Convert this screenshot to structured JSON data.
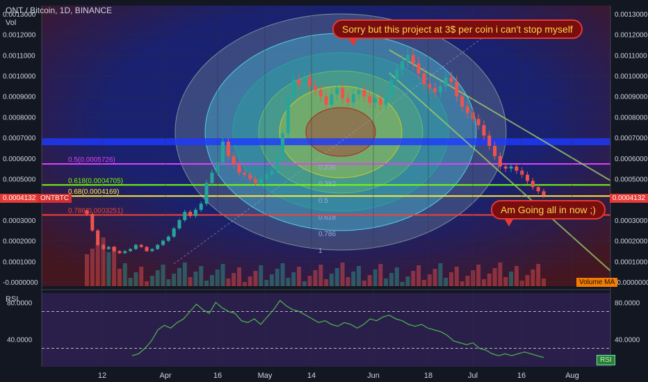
{
  "header": {
    "title": "ONT / Bitcoin, 1D, BINANCE",
    "volume_label": "Vol"
  },
  "price_tags": {
    "last_price": "0.0004132",
    "symbol": "ONTBTC"
  },
  "bubbles": {
    "top": "Sorry but this project at 3$ per coin i can't stop myself",
    "bottom": "Am Going all in now ;)"
  },
  "volume_ma_label": "Volume MA",
  "rsi_panel": {
    "title": "RSI",
    "tag": "RSI",
    "y_ticks": [
      "80.0000",
      "40.0000"
    ],
    "overbought": 70,
    "oversold": 30,
    "range": [
      10,
      90
    ]
  },
  "fib_labels": [
    {
      "text": "0.5(0.0005726)",
      "level": 0.0005726,
      "color": "#e040fb"
    },
    {
      "text": "0.618(0.0004705)",
      "level": 0.0004705,
      "color": "#76ff03"
    },
    {
      "text": "0.68(0.0004169)",
      "level": 0.0004169,
      "color": "#ffeb3b"
    },
    {
      "text": "0.786(0.0003251)",
      "level": 0.0003251,
      "color": "#f44336"
    }
  ],
  "horizontal_lines": [
    {
      "level": 0.00068,
      "color": "#1e3aff"
    }
  ],
  "fib_circle_labels": [
    "0.236",
    "0.382",
    "0.5",
    "0.618",
    "0.786",
    "1"
  ],
  "chart_data": {
    "type": "candlestick",
    "title": "ONT / Bitcoin, 1D, BINANCE",
    "y_ticks": [
      "0.0013000",
      "0.0012000",
      "0.0011000",
      "0.0010000",
      "0.0009000",
      "0.0008000",
      "0.0007000",
      "0.0006000",
      "0.0005000",
      "0.0004000",
      "0.0003000",
      "0.0002000",
      "0.0001000",
      "-0.0000000"
    ],
    "ylim": [
      -2e-05,
      0.00134
    ],
    "x_ticks": [
      "12",
      "Apr",
      "16",
      "May",
      "14",
      "Jun",
      "18",
      "Jul",
      "16",
      "Aug"
    ],
    "close": [
      0.00033,
      0.00025,
      0.00018,
      0.00016,
      0.00017,
      0.00015,
      0.00014,
      0.00015,
      0.00016,
      0.00018,
      0.00017,
      0.00015,
      0.00016,
      0.00018,
      0.0002,
      0.00022,
      0.00026,
      0.0003,
      0.00034,
      0.00032,
      0.00035,
      0.00038,
      0.00048,
      0.00053,
      0.00058,
      0.00068,
      0.00061,
      0.00057,
      0.00053,
      0.00052,
      0.0005,
      0.00048,
      0.0005,
      0.00052,
      0.00054,
      0.0006,
      0.00072,
      0.0009,
      0.00098,
      0.00096,
      0.00099,
      0.00095,
      0.00093,
      0.0009,
      0.00086,
      0.00091,
      0.00094,
      0.00089,
      0.00087,
      0.00091,
      0.00093,
      0.0009,
      0.00087,
      0.00089,
      0.00086,
      0.0009,
      0.00098,
      0.00103,
      0.00107,
      0.0011,
      0.00106,
      0.00101,
      0.00096,
      0.00094,
      0.00092,
      0.00095,
      0.00099,
      0.00097,
      0.0009,
      0.00085,
      0.00082,
      0.00079,
      0.00076,
      0.00071,
      0.00066,
      0.00061,
      0.00056,
      0.00055,
      0.00056,
      0.00054,
      0.00052,
      0.00049,
      0.00046,
      0.00044,
      0.00042
    ],
    "rsi": [
      22,
      24,
      30,
      38,
      50,
      55,
      52,
      58,
      62,
      70,
      78,
      72,
      68,
      80,
      74,
      70,
      68,
      60,
      58,
      62,
      56,
      64,
      72,
      82,
      76,
      72,
      70,
      66,
      62,
      58,
      60,
      56,
      54,
      58,
      56,
      52,
      56,
      62,
      60,
      64,
      66,
      62,
      60,
      56,
      54,
      56,
      52,
      50,
      48,
      44,
      38,
      36,
      34,
      36,
      30,
      28,
      24,
      22,
      24,
      22,
      24,
      26,
      24,
      22,
      20
    ],
    "volume_ma": 2e-05
  }
}
